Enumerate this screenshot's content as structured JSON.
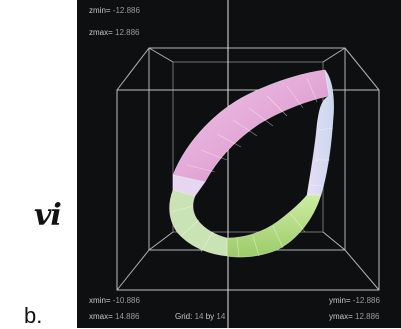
{
  "annotations": {
    "handwritten": "vi",
    "panel_letter": "b."
  },
  "viewer": {
    "zmin_label": "zmin=",
    "zmin_value": "-12.886",
    "zmax_label": "zmax=",
    "zmax_value": "12.886",
    "xmin_label": "xmin=",
    "xmin_value": "-10.886",
    "xmax_label": "xmax=",
    "xmax_value": "14.886",
    "ymin_label": "ymin=",
    "ymin_value": "-12.886",
    "ymax_label": "ymax=",
    "ymax_value": "12.886",
    "grid_label": "Grid:",
    "grid_a": "14",
    "grid_by": "by",
    "grid_b": "14"
  },
  "colors": {
    "background": "#0e0f10",
    "box": "#cfcfcf",
    "surface_pink": "#e8a8d8",
    "surface_green": "#b8e08a",
    "surface_lavender": "#d8c8f0"
  }
}
